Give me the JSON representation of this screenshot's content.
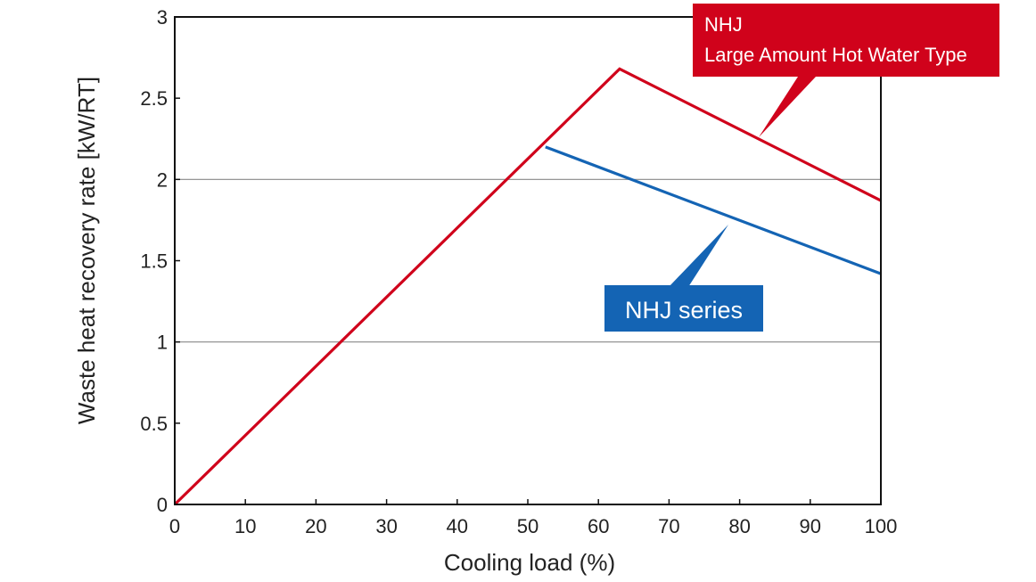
{
  "chart_data": {
    "type": "line",
    "title": "",
    "xlabel": "Cooling load (%)",
    "ylabel": "Waste heat recovery rate [kW/RT]",
    "xlim": [
      0,
      100
    ],
    "ylim": [
      0,
      3
    ],
    "x_ticks": [
      "0",
      "10",
      "20",
      "30",
      "40",
      "50",
      "60",
      "70",
      "80",
      "90",
      "100"
    ],
    "y_ticks": [
      "0",
      "0.5",
      "1",
      "1.5",
      "2",
      "2.5",
      "3"
    ],
    "grid": "horizontal at 1 and 2",
    "series": [
      {
        "name": "NHJ Large Amount Hot Water Type",
        "color": "#d0021b",
        "x": [
          0,
          63,
          100
        ],
        "y": [
          0,
          2.68,
          1.87
        ]
      },
      {
        "name": "NHJ series",
        "color": "#1464b4",
        "x": [
          52.5,
          100
        ],
        "y": [
          2.2,
          1.42
        ]
      }
    ],
    "annotations": [
      {
        "lines": [
          "NHJ",
          "Large Amount Hot Water Type"
        ],
        "color": "#d0021b",
        "series": 0
      },
      {
        "lines": [
          "NHJ series"
        ],
        "color": "#1464b4",
        "series": 1
      }
    ]
  }
}
